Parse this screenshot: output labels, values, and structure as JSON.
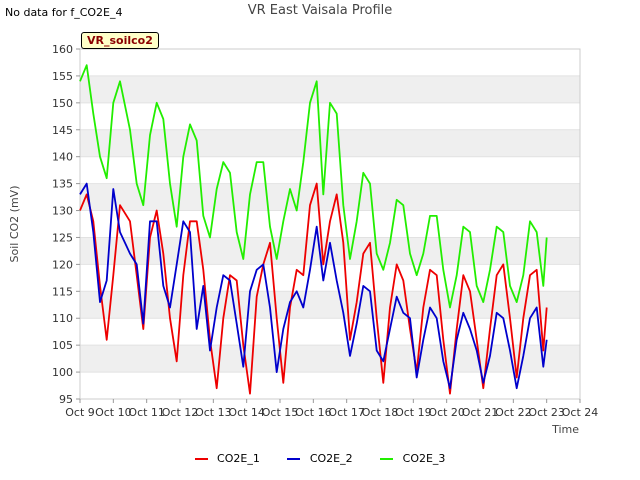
{
  "top_left_note": "No data for f_CO2E_4",
  "chart_data": {
    "type": "line",
    "title": "VR East Vaisala Profile",
    "tag": "VR_soilco2",
    "xlabel": "Time",
    "ylabel": "Soil CO2 (mV)",
    "xlim": [
      9,
      24
    ],
    "ylim": [
      95,
      160
    ],
    "x_ticks": [
      {
        "value": 9,
        "label": "Oct 9"
      },
      {
        "value": 10,
        "label": "Oct 10"
      },
      {
        "value": 11,
        "label": "Oct 11"
      },
      {
        "value": 12,
        "label": "Oct 12"
      },
      {
        "value": 13,
        "label": "Oct 13"
      },
      {
        "value": 14,
        "label": "Oct 14"
      },
      {
        "value": 15,
        "label": "Oct 15"
      },
      {
        "value": 16,
        "label": "Oct 16"
      },
      {
        "value": 17,
        "label": "Oct 17"
      },
      {
        "value": 18,
        "label": "Oct 18"
      },
      {
        "value": 19,
        "label": "Oct 19"
      },
      {
        "value": 20,
        "label": "Oct 20"
      },
      {
        "value": 21,
        "label": "Oct 21"
      },
      {
        "value": 22,
        "label": "Oct 22"
      },
      {
        "value": 23,
        "label": "Oct 23"
      },
      {
        "value": 24,
        "label": "Oct 24"
      }
    ],
    "y_ticks": [
      95,
      100,
      105,
      110,
      115,
      120,
      125,
      130,
      135,
      140,
      145,
      150,
      155,
      160
    ],
    "series": [
      {
        "name": "CO2E_1",
        "color": "#ee0000",
        "x": [
          9.0,
          9.2,
          9.4,
          9.6,
          9.8,
          10.0,
          10.2,
          10.5,
          10.7,
          10.9,
          11.1,
          11.3,
          11.5,
          11.7,
          11.9,
          12.1,
          12.3,
          12.5,
          12.7,
          12.9,
          13.1,
          13.3,
          13.5,
          13.7,
          13.9,
          14.1,
          14.3,
          14.5,
          14.7,
          14.9,
          15.1,
          15.3,
          15.5,
          15.7,
          15.9,
          16.1,
          16.3,
          16.5,
          16.7,
          16.9,
          17.1,
          17.3,
          17.5,
          17.7,
          17.9,
          18.1,
          18.3,
          18.5,
          18.7,
          18.9,
          19.1,
          19.3,
          19.5,
          19.7,
          19.9,
          20.1,
          20.3,
          20.5,
          20.7,
          20.9,
          21.1,
          21.3,
          21.5,
          21.7,
          21.9,
          22.1,
          22.3,
          22.5,
          22.7,
          22.9,
          23.0
        ],
        "y": [
          130,
          133,
          128,
          116,
          106,
          118,
          131,
          128,
          118,
          108,
          125,
          130,
          122,
          110,
          102,
          118,
          128,
          128,
          119,
          106,
          97,
          110,
          118,
          117,
          105,
          96,
          114,
          120,
          124,
          110,
          98,
          112,
          119,
          118,
          131,
          135,
          120,
          128,
          133,
          124,
          106,
          113,
          122,
          124,
          110,
          98,
          112,
          120,
          117,
          108,
          100,
          112,
          119,
          118,
          106,
          96,
          108,
          118,
          115,
          106,
          97,
          108,
          118,
          120,
          110,
          99,
          110,
          118,
          119,
          104,
          112
        ]
      },
      {
        "name": "CO2E_2",
        "color": "#0000cc",
        "x": [
          9.0,
          9.2,
          9.4,
          9.6,
          9.8,
          10.0,
          10.2,
          10.5,
          10.7,
          10.9,
          11.1,
          11.3,
          11.5,
          11.7,
          11.9,
          12.1,
          12.3,
          12.5,
          12.7,
          12.9,
          13.1,
          13.3,
          13.5,
          13.7,
          13.9,
          14.1,
          14.3,
          14.5,
          14.7,
          14.9,
          15.1,
          15.3,
          15.5,
          15.7,
          15.9,
          16.1,
          16.3,
          16.5,
          16.7,
          16.9,
          17.1,
          17.3,
          17.5,
          17.7,
          17.9,
          18.1,
          18.3,
          18.5,
          18.7,
          18.9,
          19.1,
          19.3,
          19.5,
          19.7,
          19.9,
          20.1,
          20.3,
          20.5,
          20.7,
          20.9,
          21.1,
          21.3,
          21.5,
          21.7,
          21.9,
          22.1,
          22.3,
          22.5,
          22.7,
          22.9,
          23.0
        ],
        "y": [
          133,
          135,
          126,
          113,
          117,
          134,
          126,
          122,
          120,
          109,
          128,
          128,
          116,
          112,
          120,
          128,
          126,
          108,
          116,
          104,
          112,
          118,
          117,
          109,
          101,
          115,
          119,
          120,
          112,
          100,
          108,
          113,
          115,
          112,
          119,
          127,
          117,
          124,
          117,
          111,
          103,
          109,
          116,
          115,
          104,
          102,
          108,
          114,
          111,
          110,
          99,
          106,
          112,
          110,
          102,
          97,
          106,
          111,
          108,
          104,
          98,
          103,
          111,
          110,
          104,
          97,
          103,
          110,
          112,
          101,
          106
        ]
      },
      {
        "name": "CO2E_3",
        "color": "#22ee00",
        "x": [
          9.0,
          9.2,
          9.4,
          9.6,
          9.8,
          10.0,
          10.2,
          10.5,
          10.7,
          10.9,
          11.1,
          11.3,
          11.5,
          11.7,
          11.9,
          12.1,
          12.3,
          12.5,
          12.7,
          12.9,
          13.1,
          13.3,
          13.5,
          13.7,
          13.9,
          14.1,
          14.3,
          14.5,
          14.7,
          14.9,
          15.1,
          15.3,
          15.5,
          15.7,
          15.9,
          16.1,
          16.3,
          16.5,
          16.7,
          16.9,
          17.1,
          17.3,
          17.5,
          17.7,
          17.9,
          18.1,
          18.3,
          18.5,
          18.7,
          18.9,
          19.1,
          19.3,
          19.5,
          19.7,
          19.9,
          20.1,
          20.3,
          20.5,
          20.7,
          20.9,
          21.1,
          21.3,
          21.5,
          21.7,
          21.9,
          22.1,
          22.3,
          22.5,
          22.7,
          22.9,
          23.0
        ],
        "y": [
          154,
          157,
          148,
          140,
          136,
          150,
          154,
          145,
          135,
          131,
          144,
          150,
          147,
          135,
          127,
          140,
          146,
          143,
          129,
          125,
          134,
          139,
          137,
          126,
          121,
          133,
          139,
          139,
          127,
          121,
          128,
          134,
          130,
          139,
          150,
          154,
          133,
          150,
          148,
          131,
          121,
          128,
          137,
          135,
          122,
          119,
          124,
          132,
          131,
          122,
          118,
          122,
          129,
          129,
          119,
          112,
          118,
          127,
          126,
          116,
          113,
          119,
          127,
          126,
          116,
          113,
          118,
          128,
          126,
          116,
          125
        ]
      }
    ]
  }
}
